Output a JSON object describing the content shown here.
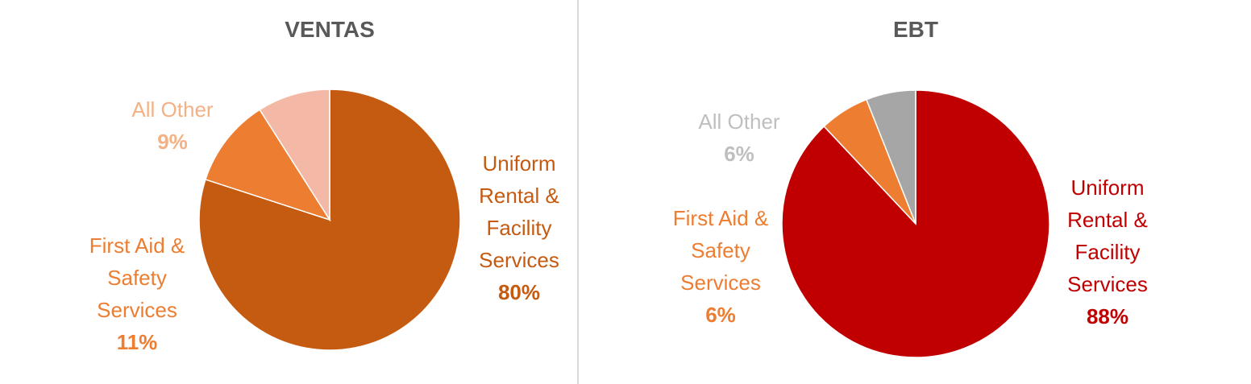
{
  "colors": {
    "divider": "#d9d9d9",
    "title": "#595959",
    "slice_border": "#ffffff"
  },
  "chart_data": [
    {
      "type": "pie",
      "title": "VENTAS",
      "start_angle_deg": 270,
      "direction": "clockwise",
      "slices": [
        {
          "label_lines": [
            "Uniform",
            "Rental &",
            "Facility",
            "Services"
          ],
          "value": 80,
          "value_label": "80%",
          "color": "#c55a11",
          "label_color": "#c55a11"
        },
        {
          "label_lines": [
            "First Aid &",
            "Safety",
            "Services"
          ],
          "value": 11,
          "value_label": "11%",
          "color": "#ed7d31",
          "label_color": "#ed7d31"
        },
        {
          "label_lines": [
            "All Other"
          ],
          "value": 9,
          "value_label": "9%",
          "color": "#f4b9a6",
          "label_color": "#f4b183"
        }
      ]
    },
    {
      "type": "pie",
      "title": "EBT",
      "start_angle_deg": 270,
      "direction": "clockwise",
      "slices": [
        {
          "label_lines": [
            "Uniform",
            "Rental &",
            "Facility",
            "Services"
          ],
          "value": 88,
          "value_label": "88%",
          "color": "#c00000",
          "label_color": "#c00000"
        },
        {
          "label_lines": [
            "First Aid &",
            "Safety",
            "Services"
          ],
          "value": 6,
          "value_label": "6%",
          "color": "#ed7d31",
          "label_color": "#ed7d31"
        },
        {
          "label_lines": [
            "All Other"
          ],
          "value": 6,
          "value_label": "6%",
          "color": "#a6a6a6",
          "label_color": "#bfbfbf"
        }
      ]
    }
  ]
}
